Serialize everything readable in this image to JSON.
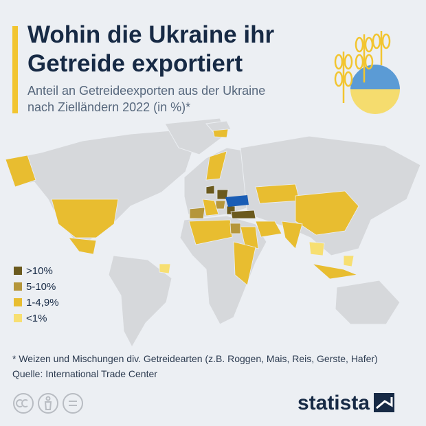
{
  "header": {
    "title": [
      "Wohin die Ukraine ihr",
      "Getreide exportiert"
    ],
    "subtitle": [
      "Anteil an Getreideexporten aus der Ukraine",
      "nach Zielländern 2022 (in %)*"
    ]
  },
  "legend": {
    "items": [
      {
        "label": ">10%",
        "color": "#6b5a1e"
      },
      {
        "label": "5-10%",
        "color": "#b5963a"
      },
      {
        "label": "1-4,9%",
        "color": "#e8bd30"
      },
      {
        "label": "<1%",
        "color": "#f7df72"
      }
    ]
  },
  "footnote": "* Weizen und Mischungen div. Getreidearten (z.B. Roggen, Mais, Reis, Gerste, Hafer)",
  "source": "Quelle: International Trade Center",
  "brand": "statista"
}
